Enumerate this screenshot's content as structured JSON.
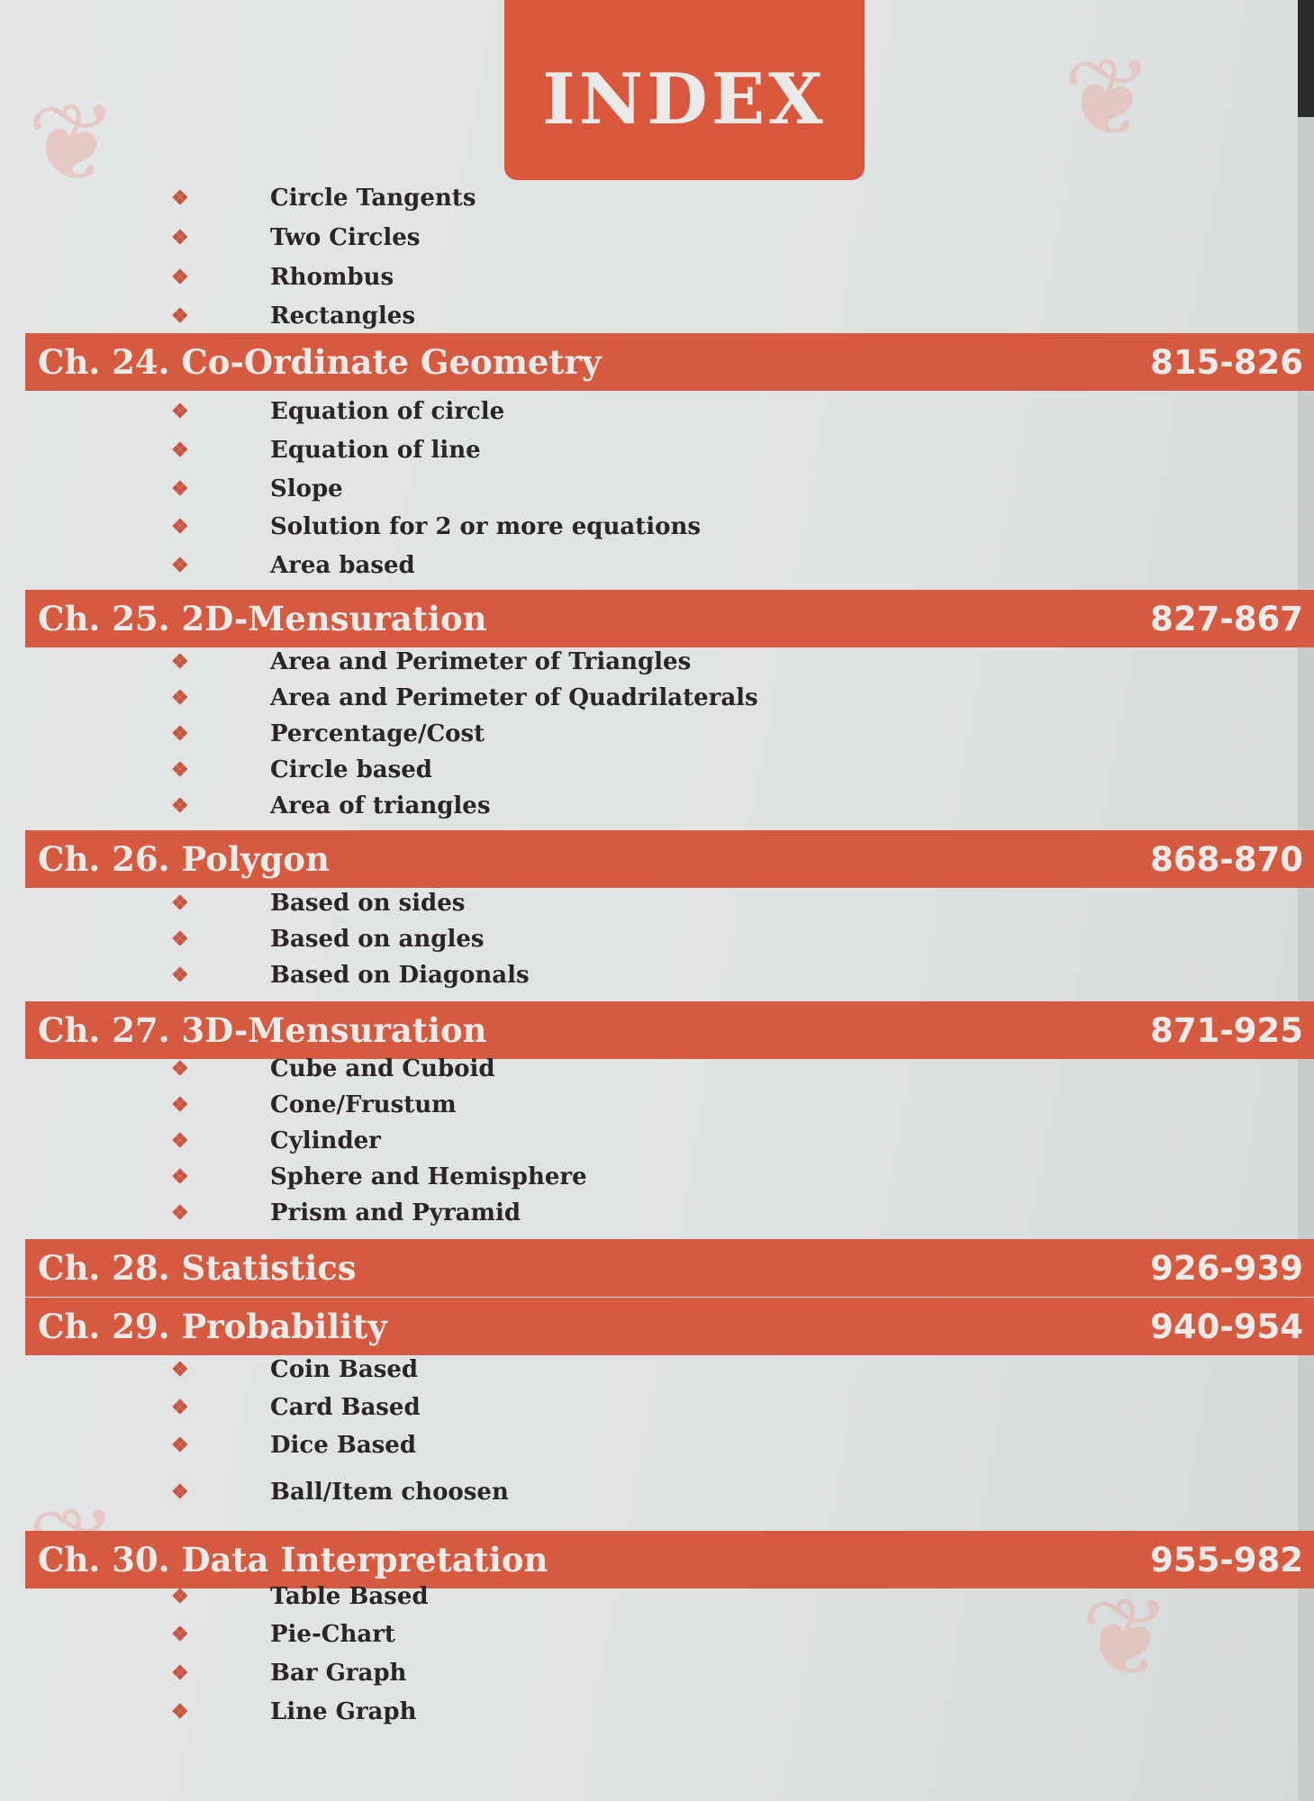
{
  "title": "INDEX",
  "colors": {
    "accent": "#d65a40",
    "text": "#2b2523",
    "paper": "#e2e4e5"
  },
  "bullet_icon": "four-diamond-bullet",
  "top_items": [
    "Circle Tangents",
    "Two Circles",
    "Rhombus",
    "Rectangles"
  ],
  "chapters": [
    {
      "label": "Ch. 24. Co-Ordinate Geometry",
      "pages": "815-826",
      "items": [
        "Equation of circle",
        "Equation of line",
        "Slope",
        "Solution for 2 or more equations",
        "Area based"
      ]
    },
    {
      "label": "Ch. 25. 2D-Mensuration",
      "pages": "827-867",
      "items": [
        "Area and Perimeter of Triangles",
        "Area and Perimeter of Quadrilaterals",
        "Percentage/Cost",
        "Circle based",
        "Area of triangles"
      ]
    },
    {
      "label": "Ch. 26. Polygon",
      "pages": "868-870",
      "items": [
        "Based on sides",
        "Based on angles",
        "Based on Diagonals"
      ]
    },
    {
      "label": "Ch. 27. 3D-Mensuration",
      "pages": "871-925",
      "items": [
        "Cube and Cuboid",
        "Cone/Frustum",
        "Cylinder",
        "Sphere and Hemisphere",
        "Prism and Pyramid"
      ]
    },
    {
      "label": "Ch. 28. Statistics",
      "pages": "926-939",
      "items": []
    },
    {
      "label": "Ch. 29. Probability",
      "pages": "940-954",
      "items": [
        "Coin Based",
        "Card Based",
        "Dice Based",
        "Ball/Item choosen"
      ]
    },
    {
      "label": "Ch. 30. Data Interpretation",
      "pages": "955-982",
      "items": [
        "Table Based",
        "Pie-Chart",
        "Bar Graph",
        "Line Graph"
      ]
    }
  ]
}
